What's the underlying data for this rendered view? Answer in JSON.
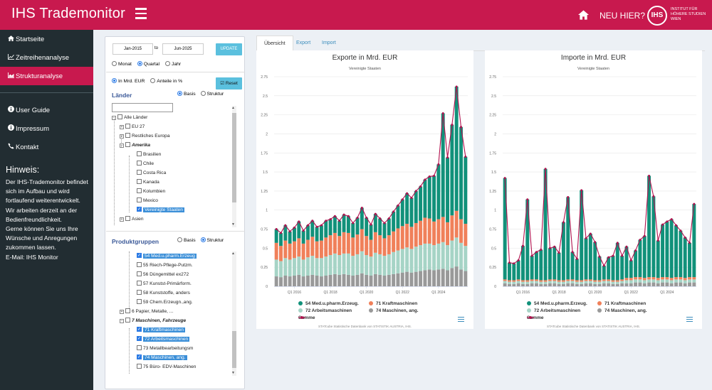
{
  "header": {
    "brand": "IHS Trademonitor",
    "neu": "NEU HIER?",
    "logo_mark": "IHS",
    "logo_text": "INSTITUT FÜR HÖHERE STUDIEN WIEN"
  },
  "sidebar": {
    "items": [
      {
        "icon": "home-icon",
        "label": "Startseite"
      },
      {
        "icon": "line-chart-icon",
        "label": "Zeitreihenanalyse"
      },
      {
        "icon": "area-chart-icon",
        "label": "Strukturanalyse"
      }
    ],
    "items2": [
      {
        "icon": "info-icon",
        "label": "User Guide"
      },
      {
        "icon": "info-icon",
        "label": "Impressum"
      },
      {
        "icon": "phone-icon",
        "label": "Kontakt"
      }
    ],
    "hinweis_title": "Hinweis:",
    "hinweis_lines": [
      "Der IHS-Trademonitor befindet",
      "sich im Aufbau und wird",
      "fortlaufend weiterentwickelt.",
      "Wir arbeiten derzeit an der",
      "Bedienfreundlichkeit.",
      "Gerne können Sie uns Ihre",
      "Wünsche und Anregungen",
      "zukommen lassen.",
      "E-Mail: IHS Monitor"
    ]
  },
  "controls": {
    "date_from": "Jan-2015",
    "date_to": "Jun-2025",
    "date_sep": "to",
    "update": "UPDATE",
    "freq": [
      "Monat",
      "Quartal",
      "Jahr"
    ],
    "unit": [
      "In Mrd. EUR",
      "Anteile in %"
    ],
    "reset": "Reset",
    "laender_title": "Länder",
    "laender_opts": [
      "Basis",
      "Struktur"
    ],
    "produkt_title": "Produktgruppen",
    "produkt_opts": [
      "Basis",
      "Struktur"
    ]
  },
  "laender_tree": [
    "Alle Länder",
    "EU 27",
    "Restliches Europa",
    "Amerika",
    "Brasilien",
    "Chile",
    "Costa Rica",
    "Kanada",
    "Kolumbien",
    "Mexico",
    "Vereinigte Staaten",
    "Asien"
  ],
  "produkt_tree": [
    "54 Med.u.pharm.Erzeug",
    "55 Riech-Pflege-Putzm.",
    "56 Düngemittel ex272",
    "57 Kunstst-Primärform.",
    "58 Kunststoffe, anders",
    "59 Chem.Erzeugn.,ang.",
    "6 Papier, Metalle, ...",
    "7 Maschinen, Fahrzeuge",
    "71 Kraftmaschinen",
    "72 Arbeitsmaschinen",
    "73 Metallbearbeitungsm",
    "74 Maschinen, ang.",
    "75 Büro- EDV-Maschinen"
  ],
  "tabs": [
    "Übersicht",
    "Export",
    "Import"
  ],
  "colors": {
    "brand": "#c8194e",
    "teal": "#11917a",
    "orange": "#f0805a",
    "mint": "#a6d4c6",
    "grey": "#999999",
    "line": "#b0124e"
  },
  "chart_data": [
    {
      "type": "bar",
      "stacked": true,
      "title": "Exporte in Mrd. EUR",
      "subtitle": "Vereinigte Staaten",
      "ylim": [
        0,
        2.75
      ],
      "yticks": [
        "0",
        "0.25",
        "0.5",
        "0.75",
        "1",
        "1.25",
        "1.5",
        "1.75",
        "2",
        "2.25",
        "2.5",
        "2.75"
      ],
      "xticks": [
        {
          "label": "Q1 2016",
          "index": 4
        },
        {
          "label": "Q1 2018",
          "index": 12
        },
        {
          "label": "Q1 2020",
          "index": 20
        },
        {
          "label": "Q1 2022",
          "index": 28
        },
        {
          "label": "Q1 2024",
          "index": 36
        }
      ],
      "series": [
        {
          "name": "74 Maschinen, ang.",
          "color": "#999999",
          "values": [
            0.13,
            0.12,
            0.14,
            0.13,
            0.14,
            0.15,
            0.13,
            0.14,
            0.15,
            0.14,
            0.13,
            0.14,
            0.15,
            0.16,
            0.15,
            0.16,
            0.15,
            0.14,
            0.15,
            0.17,
            0.15,
            0.14,
            0.16,
            0.15,
            0.14,
            0.15,
            0.16,
            0.17,
            0.18,
            0.19,
            0.18,
            0.19,
            0.2,
            0.21,
            0.22,
            0.21,
            0.22,
            0.23,
            0.21,
            0.24,
            0.26,
            0.22,
            0.2
          ]
        },
        {
          "name": "72 Arbeitsmaschinen",
          "color": "#a6d4c6",
          "values": [
            0.22,
            0.21,
            0.23,
            0.22,
            0.23,
            0.24,
            0.22,
            0.24,
            0.25,
            0.23,
            0.24,
            0.25,
            0.26,
            0.27,
            0.26,
            0.27,
            0.28,
            0.26,
            0.27,
            0.29,
            0.26,
            0.25,
            0.28,
            0.27,
            0.26,
            0.27,
            0.29,
            0.3,
            0.31,
            0.32,
            0.31,
            0.33,
            0.34,
            0.35,
            0.34,
            0.33,
            0.34,
            0.35,
            0.33,
            0.36,
            0.38,
            0.35,
            0.33
          ]
        },
        {
          "name": "71 Kraftmaschinen",
          "color": "#f0805a",
          "values": [
            0.22,
            0.2,
            0.23,
            0.21,
            0.22,
            0.24,
            0.21,
            0.23,
            0.25,
            0.22,
            0.23,
            0.25,
            0.26,
            0.27,
            0.25,
            0.28,
            0.27,
            0.24,
            0.26,
            0.29,
            0.25,
            0.22,
            0.27,
            0.25,
            0.23,
            0.25,
            0.27,
            0.29,
            0.3,
            0.31,
            0.29,
            0.31,
            0.32,
            0.34,
            0.33,
            0.31,
            0.32,
            0.33,
            0.3,
            0.33,
            0.35,
            0.31,
            0.29
          ]
        },
        {
          "name": "54 Med.u.pharm.Erzeug.",
          "color": "#11917a",
          "values": [
            0.18,
            0.17,
            0.2,
            0.16,
            0.18,
            0.22,
            0.17,
            0.19,
            0.21,
            0.19,
            0.2,
            0.22,
            0.21,
            0.22,
            0.2,
            0.23,
            0.22,
            0.19,
            0.22,
            0.28,
            0.24,
            0.2,
            0.24,
            0.22,
            0.2,
            0.22,
            0.26,
            0.3,
            0.35,
            0.4,
            0.38,
            0.42,
            0.45,
            0.5,
            0.55,
            0.6,
            0.72,
            1.36,
            0.85,
            1.19,
            1.63,
            1.21,
            0.88
          ]
        }
      ],
      "summe_name": "Summe",
      "legend": [
        "54 Med.u.pharm.Erzeug.",
        "71 Kraftmaschinen",
        "72 Arbeitsmaschinen",
        "74 Maschinen, ang.",
        "Summe"
      ],
      "credits": "STATcube Statistische Datenbank von STATISTIK AUSTRIA, IHS."
    },
    {
      "type": "bar",
      "stacked": true,
      "title": "Importe in Mrd. EUR",
      "subtitle": "Vereinigte Staaten",
      "ylim": [
        0,
        2.75
      ],
      "yticks": [
        "0",
        "0.25",
        "0.5",
        "0.75",
        "1",
        "1.25",
        "1.5",
        "1.75",
        "2",
        "2.25",
        "2.5",
        "2.75"
      ],
      "xticks": [
        {
          "label": "Q1 2016",
          "index": 4
        },
        {
          "label": "Q1 2018",
          "index": 12
        },
        {
          "label": "Q1 2020",
          "index": 20
        },
        {
          "label": "Q1 2022",
          "index": 28
        },
        {
          "label": "Q1 2024",
          "index": 36
        }
      ],
      "series": [
        {
          "name": "74 Maschinen, ang.",
          "color": "#999999",
          "values": [
            0.04,
            0.03,
            0.03,
            0.04,
            0.03,
            0.03,
            0.04,
            0.04,
            0.03,
            0.03,
            0.04,
            0.04,
            0.03,
            0.03,
            0.04,
            0.04,
            0.03,
            0.03,
            0.04,
            0.04,
            0.03,
            0.03,
            0.04,
            0.04,
            0.03,
            0.03,
            0.04,
            0.04,
            0.04,
            0.05,
            0.05,
            0.04,
            0.05,
            0.05,
            0.04,
            0.05,
            0.05,
            0.04,
            0.05,
            0.05,
            0.04,
            0.05,
            0.05
          ]
        },
        {
          "name": "72 Arbeitsmaschinen",
          "color": "#a6d4c6",
          "values": [
            0.03,
            0.03,
            0.03,
            0.03,
            0.03,
            0.03,
            0.03,
            0.03,
            0.03,
            0.03,
            0.03,
            0.03,
            0.03,
            0.03,
            0.03,
            0.03,
            0.03,
            0.03,
            0.03,
            0.03,
            0.03,
            0.03,
            0.03,
            0.03,
            0.03,
            0.03,
            0.03,
            0.04,
            0.04,
            0.04,
            0.04,
            0.04,
            0.04,
            0.04,
            0.04,
            0.04,
            0.04,
            0.04,
            0.04,
            0.04,
            0.04,
            0.04,
            0.04
          ]
        },
        {
          "name": "71 Kraftmaschinen",
          "color": "#f0805a",
          "values": [
            0.02,
            0.02,
            0.02,
            0.02,
            0.02,
            0.02,
            0.02,
            0.02,
            0.02,
            0.02,
            0.02,
            0.02,
            0.02,
            0.02,
            0.02,
            0.02,
            0.02,
            0.02,
            0.02,
            0.02,
            0.02,
            0.02,
            0.02,
            0.02,
            0.02,
            0.02,
            0.02,
            0.03,
            0.03,
            0.03,
            0.03,
            0.03,
            0.03,
            0.03,
            0.03,
            0.03,
            0.03,
            0.03,
            0.03,
            0.03,
            0.03,
            0.03,
            0.03
          ]
        },
        {
          "name": "54 Med.u.pharm.Erzeug.",
          "color": "#11917a",
          "values": [
            1.33,
            0.23,
            0.22,
            0.25,
            0.45,
            1.06,
            0.31,
            0.36,
            0.4,
            1.46,
            0.41,
            0.43,
            0.36,
            0.76,
            1.08,
            0.36,
            0.28,
            1.18,
            0.54,
            0.6,
            0.5,
            0.31,
            0.18,
            0.29,
            0.32,
            0.49,
            0.31,
            0.41,
            0.23,
            0.35,
            0.49,
            0.55,
            1.33,
            1.06,
            0.49,
            0.69,
            0.73,
            0.77,
            0.68,
            0.61,
            0.53,
            0.45,
            0.96
          ]
        }
      ],
      "summe_name": "Summe",
      "legend": [
        "54 Med.u.pharm.Erzeug.",
        "71 Kraftmaschinen",
        "72 Arbeitsmaschinen",
        "74 Maschinen, ang.",
        "Summe"
      ],
      "credits": "STATcube Statistische Datenbank von STATISTIK AUSTRIA, IHS."
    }
  ]
}
